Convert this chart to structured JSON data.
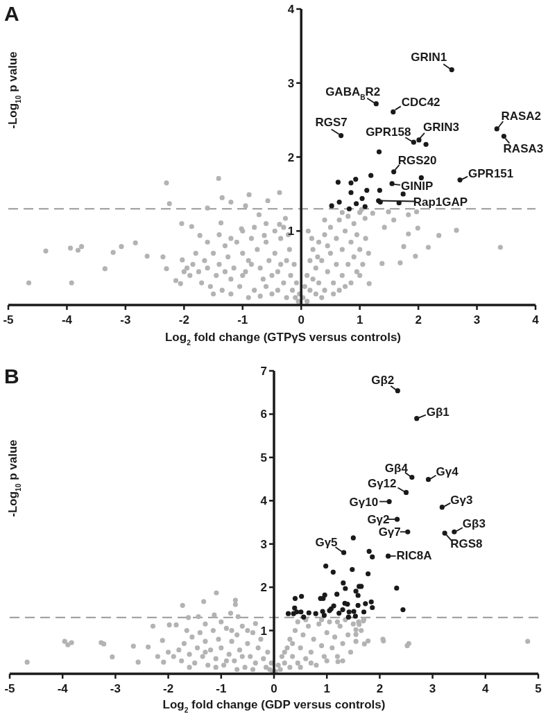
{
  "chart_data": [
    {
      "type": "scatter",
      "title": "A",
      "xlabel": "Log$_{2}$ fold change (GTPγS versus controls)",
      "ylabel": "-Log$_{10}$ p value",
      "xlim": [
        -5,
        4
      ],
      "xticks": [
        -5,
        -4,
        -3,
        -2,
        -1,
        0,
        1,
        2,
        3,
        4
      ],
      "ylim": [
        0,
        4
      ],
      "yticks": [
        1,
        2,
        3,
        4
      ],
      "marker": "circle",
      "ref_lines": [
        {
          "axis": "y",
          "value": 1.3,
          "color": "#999999",
          "line_style": "dashed"
        }
      ],
      "series": [
        {
          "color": "#b3b3b5",
          "x": [
            -1.75,
            -1.7,
            -1.65,
            -1.6,
            -1.55,
            -1.5,
            -1.45,
            -1.4,
            -1.35,
            -1.3,
            -1.25,
            -1.2,
            -1.15,
            -1.1,
            -1.05,
            -1.0,
            -0.95,
            -0.9,
            -0.85,
            -0.8,
            -0.75,
            -0.7,
            -0.65,
            -0.6,
            -0.55,
            -0.5,
            -0.45,
            -0.4,
            -0.35,
            -0.3,
            -0.25,
            -0.2,
            -0.18,
            -0.15,
            -0.12,
            -0.1,
            -0.08,
            -0.05,
            -0.03,
            -1.85,
            -1.9,
            -1.95,
            -2.0,
            -1.8,
            -1.6,
            -1.4,
            -1.2,
            -1.0,
            -0.8,
            -0.6,
            -0.45,
            -0.3,
            -0.22,
            -1.5,
            -1.2,
            -0.9,
            -0.7,
            -0.4,
            -0.25,
            -0.6,
            -1.0,
            -0.85,
            -1.3,
            -0.5,
            -0.35,
            -4.65,
            -3.92,
            -4.36,
            -3.94,
            -3.81,
            -3.75,
            -3.35,
            -3.21,
            -3.07,
            -2.83,
            -2.63,
            -2.36,
            -2.3,
            -2.25,
            -2.3,
            -2.14,
            -2.06,
            -2.03,
            -2.04,
            -1.87,
            -1.73,
            -1.6,
            -1.41,
            -1.35,
            -1.2,
            -0.89,
            -0.95,
            -1.37,
            -0.72,
            -0.57,
            -0.37,
            -0.27,
            -0.37,
            -1.02,
            -0.63,
            0.03,
            0.06,
            0.1,
            0.1,
            0.15,
            0.15,
            0.2,
            0.2,
            0.25,
            0.25,
            0.3,
            0.3,
            0.35,
            0.4,
            0.4,
            0.45,
            0.5,
            0.5,
            0.55,
            0.6,
            0.6,
            0.65,
            0.7,
            0.7,
            0.75,
            0.8,
            0.8,
            0.85,
            0.85,
            0.9,
            0.9,
            0.95,
            0.95,
            1.0,
            1.0,
            1.05,
            1.1,
            1.15,
            0.35,
            0.55,
            0.75,
            1.0,
            0.65,
            0.45,
            0.28,
            0.18,
            0.12,
            0.4,
            0.7,
            2.35,
            2.65,
            3.4,
            2.17,
            1.95,
            1.99,
            1.83,
            1.69,
            1.75,
            1.97,
            1.83,
            1.58,
            1.49,
            1.22,
            1.42,
            1.16,
            1.38,
            1.09,
            1.03
          ],
          "values": [
            0.45,
            0.3,
            0.6,
            0.5,
            0.25,
            0.7,
            0.4,
            0.55,
            0.2,
            0.8,
            0.65,
            0.35,
            0.5,
            0.85,
            0.25,
            0.7,
            0.45,
            0.6,
            0.9,
            0.2,
            0.75,
            0.5,
            0.35,
            0.85,
            0.6,
            0.15,
            0.7,
            0.45,
            0.9,
            0.3,
            0.6,
            0.75,
            0.4,
            0.2,
            0.55,
            0.1,
            0.3,
            0.05,
            0.15,
            0.55,
            0.4,
            0.5,
            0.45,
            0.7,
            0.85,
            0.95,
            0.9,
            1.0,
            1.05,
            1.1,
            1.0,
            1.05,
            0.95,
            0.15,
            0.15,
            0.1,
            0.12,
            0.2,
            0.1,
            0.25,
            0.4,
            0.55,
            0.45,
            0.4,
            0.55,
            0.3,
            0.3,
            0.73,
            0.77,
            0.74,
            0.79,
            0.49,
            0.71,
            0.79,
            0.84,
            0.66,
            0.65,
            1.65,
            1.37,
            0.49,
            0.33,
            0.29,
            0.61,
            1.1,
            1.06,
            0.94,
            1.31,
            1.71,
            1.45,
            1.39,
            1.49,
            1.34,
            1.11,
            1.22,
            1.41,
            1.52,
            1.17,
            1.09,
            1.03,
            0.94,
            0.1,
            0.25,
            0.05,
            0.4,
            0.2,
            0.6,
            0.35,
            0.75,
            0.15,
            0.5,
            0.85,
            0.3,
            0.6,
            0.2,
            0.95,
            0.45,
            0.7,
            1.05,
            0.3,
            0.55,
            0.9,
            1.15,
            0.4,
            0.75,
            1.0,
            0.55,
            1.2,
            0.3,
            0.85,
            0.65,
            1.1,
            0.45,
            0.95,
            0.75,
            1.25,
            0.55,
            0.9,
            0.7,
            0.1,
            0.15,
            0.25,
            0.4,
            0.2,
            0.8,
            0.65,
            0.9,
            1.0,
            1.15,
            1.25,
            0.94,
            1.01,
            0.78,
            0.78,
            0.66,
            1.04,
            0.96,
            0.57,
            0.79,
            1.26,
            1.22,
            1.15,
            1.26,
            1.24,
            1.05,
            0.29,
            0.56,
            1.17,
            1.29
          ]
        },
        {
          "color": "#1a1a1a",
          "x": [
            2.57,
            1.28,
            1.57,
            0.68,
            1.92,
            2.01,
            2.13,
            3.34,
            3.46,
            1.33,
            1.58,
            2.71,
            2.05,
            1.55,
            1.74,
            1.32,
            1.35,
            1.67,
            0.63,
            0.85,
            0.93,
            1.19,
            0.85,
            1.12,
            1.34,
            1.04,
            0.65,
            0.52,
            0.94,
            1.09,
            0.82
          ],
          "values": [
            3.18,
            2.72,
            2.61,
            2.29,
            2.2,
            2.23,
            2.17,
            2.38,
            2.28,
            2.07,
            1.8,
            1.69,
            1.72,
            1.64,
            1.5,
            1.41,
            1.39,
            1.38,
            1.66,
            1.65,
            1.7,
            1.75,
            1.52,
            1.55,
            1.55,
            1.44,
            1.39,
            1.34,
            1.37,
            1.33,
            1.3
          ]
        }
      ],
      "annotations": [
        {
          "text": "GRIN1",
          "x": 2.57,
          "y": 3.18
        },
        {
          "text": "GABA$_{B}$R2",
          "x": 1.28,
          "y": 2.72
        },
        {
          "text": "CDC42",
          "x": 1.57,
          "y": 2.61
        },
        {
          "text": "RGS7",
          "x": 0.68,
          "y": 2.29
        },
        {
          "text": "GPR158",
          "x": 1.92,
          "y": 2.2
        },
        {
          "text": "GRIN3",
          "x": 2.01,
          "y": 2.23
        },
        {
          "text": "RASA2",
          "x": 3.34,
          "y": 2.38
        },
        {
          "text": "RASA3",
          "x": 3.46,
          "y": 2.28
        },
        {
          "text": "RGS20",
          "x": 1.58,
          "y": 1.8
        },
        {
          "text": "GPR151",
          "x": 2.71,
          "y": 1.69
        },
        {
          "text": "GINIP",
          "x": 1.55,
          "y": 1.64
        },
        {
          "text": "Rap1GAP",
          "x": 1.32,
          "y": 1.41
        }
      ]
    },
    {
      "type": "scatter",
      "title": "B",
      "xlabel": "Log$_{2}$ fold change (GDP versus controls)",
      "ylabel": "-Log$_{10}$ p value",
      "xlim": [
        -5,
        5
      ],
      "xticks": [
        -5,
        -4,
        -3,
        -2,
        -1,
        0,
        1,
        2,
        3,
        4,
        5
      ],
      "ylim": [
        0,
        7
      ],
      "yticks": [
        1,
        2,
        3,
        4,
        5,
        6,
        7
      ],
      "marker": "circle",
      "ref_lines": [
        {
          "axis": "y",
          "value": 1.3,
          "color": "#999999",
          "line_style": "dashed"
        }
      ],
      "series": [
        {
          "color": "#b3b3b5",
          "x": [
            -1.9,
            -1.8,
            -1.75,
            -1.7,
            -1.6,
            -1.55,
            -1.5,
            -1.45,
            -1.4,
            -1.35,
            -1.3,
            -1.25,
            -1.2,
            -1.15,
            -1.1,
            -1.05,
            -1.0,
            -0.95,
            -0.9,
            -0.85,
            -0.8,
            -0.75,
            -0.7,
            -0.65,
            -0.6,
            -0.55,
            -0.5,
            -0.45,
            -0.4,
            -0.35,
            -0.3,
            -0.25,
            -0.2,
            -0.15,
            -0.12,
            -0.08,
            -0.05,
            -0.03,
            -2.0,
            -2.2,
            -1.65,
            -1.3,
            -1.0,
            -0.8,
            -0.5,
            -1.1,
            -0.7,
            -0.4,
            -1.6,
            -0.9,
            -1.3,
            -0.6,
            -4.67,
            -3.96,
            -3.9,
            -3.83,
            -3.27,
            -3.22,
            -3.06,
            -2.66,
            -2.57,
            -2.38,
            -2.29,
            -2.09,
            -2.11,
            -1.98,
            -1.85,
            -1.73,
            -1.62,
            -1.43,
            -1.33,
            -1.09,
            -1.13,
            -0.73,
            -0.73,
            -0.68,
            -0.35,
            -0.82,
            0.03,
            0.08,
            0.12,
            0.15,
            0.2,
            0.25,
            0.3,
            0.3,
            0.35,
            0.4,
            0.45,
            0.5,
            0.55,
            0.6,
            0.65,
            0.7,
            0.75,
            0.8,
            0.85,
            0.9,
            0.95,
            1.0,
            1.05,
            1.1,
            1.15,
            1.2,
            1.25,
            1.3,
            1.35,
            1.4,
            1.45,
            1.5,
            1.55,
            1.6,
            1.65,
            1.7,
            0.5,
            0.7,
            1.0,
            0.2,
            0.45,
            0.6,
            0.9,
            1.2,
            1.3,
            0.35,
            4.8,
            2.55,
            2.52,
            2.06,
            2.07,
            1.78,
            1.71,
            1.55,
            1.55,
            1.21,
            1.69,
            1.61
          ],
          "values": [
            0.4,
            0.55,
            0.3,
            0.7,
            0.45,
            0.85,
            0.25,
            0.6,
            0.95,
            0.4,
            0.75,
            0.2,
            0.55,
            1.0,
            0.35,
            0.8,
            0.6,
            0.2,
            1.05,
            0.45,
            0.75,
            0.3,
            0.9,
            0.55,
            1.1,
            0.15,
            0.7,
            0.4,
            0.95,
            0.25,
            0.6,
            0.8,
            0.35,
            0.15,
            0.5,
            0.1,
            0.25,
            0.05,
            0.5,
            0.4,
            1.0,
            1.15,
            1.2,
            1.0,
            1.0,
            0.15,
            0.1,
            0.1,
            0.15,
            0.3,
            0.5,
            0.4,
            0.27,
            0.75,
            0.67,
            0.72,
            0.72,
            0.69,
            0.39,
            0.64,
            0.27,
            0.62,
            1.1,
            0.27,
            0.77,
            1.13,
            1.13,
            1.58,
            1.3,
            1.32,
            1.67,
            1.87,
            1.36,
            1.7,
            1.6,
            1.32,
            1.16,
            1.4,
            0.05,
            0.2,
            0.1,
            0.4,
            0.25,
            0.6,
            0.15,
            0.8,
            0.4,
            1.0,
            0.25,
            0.6,
            0.9,
            0.35,
            1.1,
            0.5,
            0.8,
            0.2,
            1.15,
            0.65,
            0.4,
            0.95,
            1.2,
            0.6,
            0.85,
            0.4,
            1.1,
            0.7,
            1.25,
            0.9,
            0.5,
            1.15,
            0.75,
            1.2,
            1.0,
            1.25,
            0.15,
            0.25,
            0.3,
            0.5,
            1.2,
            1.25,
            1.25,
            1.2,
            0.3,
            0.7,
            0.75,
            0.7,
            0.65,
            0.8,
            0.76,
            0.76,
            0.69,
            1.02,
            0.91,
            0.28,
            1.22,
            1.14
          ]
        },
        {
          "color": "#1a1a1a",
          "x": [
            2.34,
            2.7,
            2.61,
            2.92,
            2.5,
            2.18,
            3.18,
            2.33,
            2.53,
            3.41,
            3.23,
            1.5,
            1.32,
            1.8,
            1.86,
            2.16,
            0.98,
            1.12,
            1.48,
            1.78,
            1.31,
            1.35,
            2.32,
            1.61,
            1.55,
            1.59,
            2.44,
            1.84,
            1.86,
            1.59,
            1.19,
            0.96,
            0.93,
            0.88,
            0.52,
            0.4,
            0.39,
            0.27,
            0.37,
            0.43,
            0.51,
            0.56,
            0.66,
            0.79,
            0.92,
            0.95,
            1.05,
            1.08,
            1.13,
            1.23,
            1.3,
            1.34,
            1.39,
            1.42,
            1.51,
            1.54,
            1.41,
            1.7,
            1.73,
            1.65
          ],
          "values": [
            6.54,
            5.9,
            4.54,
            4.49,
            4.19,
            3.98,
            3.85,
            3.57,
            3.28,
            3.28,
            3.25,
            3.14,
            2.8,
            2.83,
            2.7,
            2.72,
            2.49,
            2.35,
            2.41,
            2.31,
            2.1,
            1.97,
            1.98,
            2.02,
            1.91,
            1.81,
            1.48,
            1.66,
            1.53,
            1.58,
            1.84,
            1.82,
            1.74,
            1.74,
            1.79,
            1.74,
            1.52,
            1.39,
            1.39,
            1.43,
            1.43,
            1.31,
            1.41,
            1.39,
            1.44,
            1.35,
            1.46,
            1.5,
            1.57,
            1.4,
            1.48,
            1.63,
            1.61,
            1.43,
            1.44,
            1.33,
            1.31,
            1.43,
            1.62,
            2.02
          ]
        }
      ],
      "annotations": [
        {
          "text": "Gβ2",
          "x": 2.34,
          "y": 6.54
        },
        {
          "text": "Gβ1",
          "x": 2.7,
          "y": 5.9
        },
        {
          "text": "Gβ4",
          "x": 2.61,
          "y": 4.54
        },
        {
          "text": "Gγ4",
          "x": 2.92,
          "y": 4.49
        },
        {
          "text": "Gγ12",
          "x": 2.5,
          "y": 4.19
        },
        {
          "text": "Gγ10",
          "x": 2.18,
          "y": 3.98
        },
        {
          "text": "Gγ3",
          "x": 3.18,
          "y": 3.85
        },
        {
          "text": "Gγ2",
          "x": 2.33,
          "y": 3.57
        },
        {
          "text": "Gγ7",
          "x": 2.53,
          "y": 3.28
        },
        {
          "text": "Gβ3",
          "x": 3.41,
          "y": 3.28
        },
        {
          "text": "RGS8",
          "x": 3.23,
          "y": 3.25
        },
        {
          "text": "Gγ5",
          "x": 1.32,
          "y": 2.8
        },
        {
          "text": "RIC8A",
          "x": 2.16,
          "y": 2.72
        }
      ]
    }
  ]
}
